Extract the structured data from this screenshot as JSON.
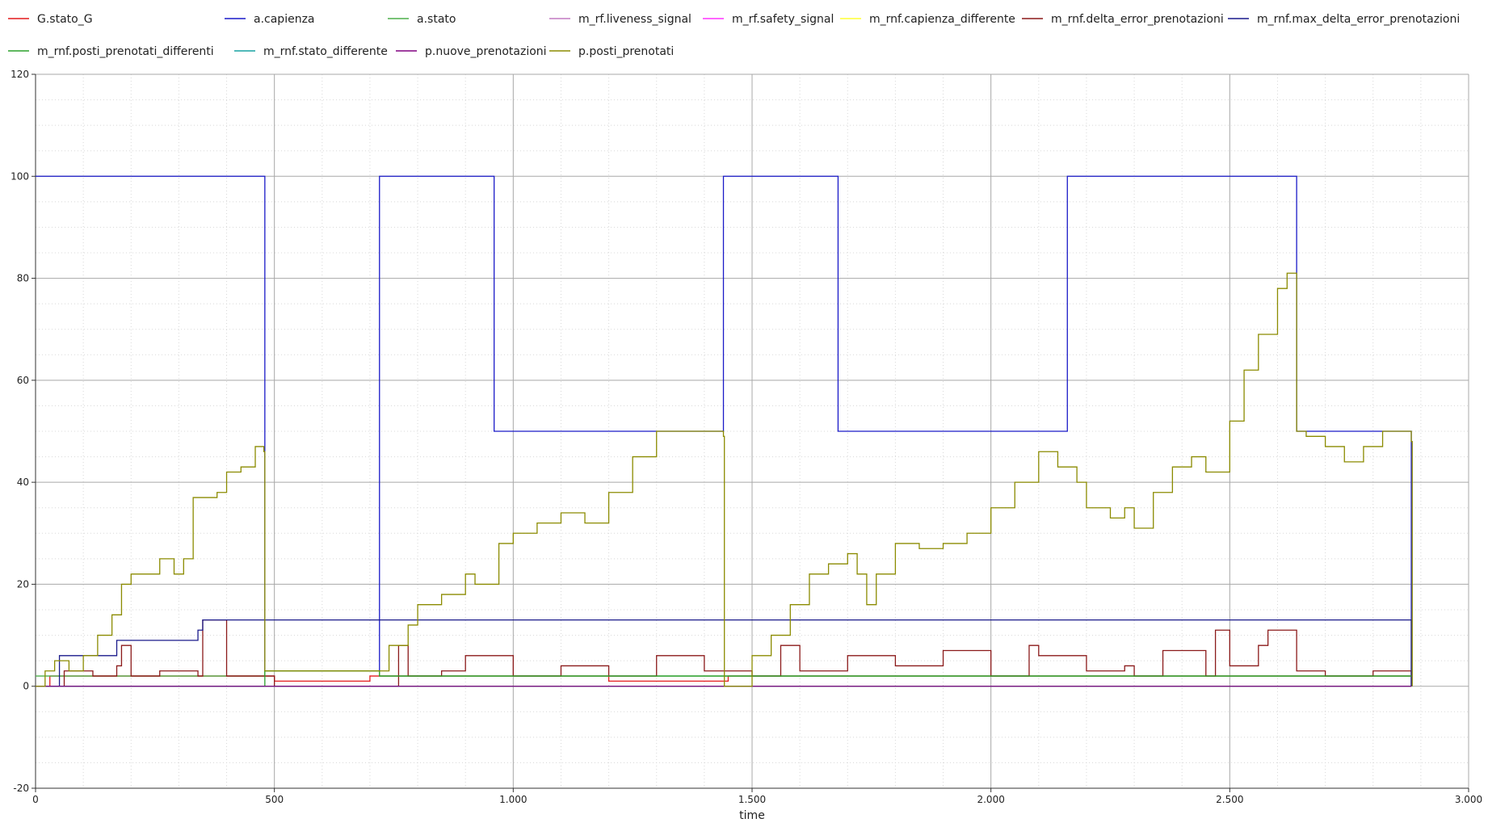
{
  "chart_data": {
    "type": "line",
    "title": "",
    "xlabel": "time",
    "ylabel": "",
    "xlim": [
      0,
      3000
    ],
    "ylim": [
      -20,
      120
    ],
    "x_ticks": [
      0,
      500,
      1000,
      1500,
      2000,
      2500,
      3000
    ],
    "x_tick_labels": [
      "0",
      "500",
      "1.000",
      "1.500",
      "2.000",
      "2.500",
      "3.000"
    ],
    "y_ticks": [
      -20,
      0,
      20,
      40,
      60,
      80,
      100,
      120
    ],
    "y_tick_labels": [
      "-20",
      "0",
      "20",
      "40",
      "60",
      "80",
      "100",
      "120"
    ],
    "grid": true,
    "legend_position": "top",
    "series": [
      {
        "name": "G.stato_G",
        "color": "#e41a1c",
        "x": [
          0,
          30,
          30,
          500,
          500,
          700,
          700,
          1200,
          1200,
          1450,
          1450,
          2160,
          2160,
          2880
        ],
        "y": [
          0,
          0,
          2,
          2,
          1,
          1,
          2,
          2,
          1,
          1,
          2,
          2,
          2,
          2
        ]
      },
      {
        "name": "a.capienza",
        "color": "#1a1ac8",
        "x": [
          0,
          480,
          480,
          720,
          720,
          960,
          960,
          1440,
          1440,
          1680,
          1680,
          2160,
          2160,
          2640,
          2640,
          2880,
          2880
        ],
        "y": [
          100,
          100,
          3,
          3,
          100,
          100,
          50,
          50,
          100,
          100,
          50,
          50,
          100,
          100,
          50,
          50,
          0
        ]
      },
      {
        "name": "a.stato",
        "color": "#4daf4a",
        "x": [
          0,
          480,
          480,
          720,
          720,
          2880
        ],
        "y": [
          2,
          2,
          3,
          3,
          2,
          2
        ]
      },
      {
        "name": "m_rf.liveness_signal",
        "color": "#c27ac2",
        "x": [
          0,
          2880
        ],
        "y": [
          0,
          0
        ]
      },
      {
        "name": "m_rf.safety_signal",
        "color": "#ff33ff",
        "x": [
          0,
          2880
        ],
        "y": [
          0,
          0
        ]
      },
      {
        "name": "m_rnf.capienza_differente",
        "color": "#ffff33",
        "x": [
          0,
          2880
        ],
        "y": [
          0,
          0
        ]
      },
      {
        "name": "m_rnf.delta_error_prenotazioni",
        "color": "#8b1a1a",
        "x": [
          0,
          60,
          120,
          170,
          180,
          200,
          260,
          340,
          350,
          400,
          500,
          700,
          760,
          780,
          850,
          900,
          1000,
          1100,
          1200,
          1300,
          1400,
          1500,
          1560,
          1600,
          1700,
          1800,
          1900,
          2000,
          2080,
          2100,
          2200,
          2280,
          2300,
          2360,
          2450,
          2470,
          2500,
          2560,
          2580,
          2640,
          2700,
          2800,
          2880
        ],
        "y": [
          0,
          3,
          2,
          4,
          8,
          2,
          3,
          2,
          13,
          2,
          0,
          0,
          8,
          2,
          3,
          6,
          2,
          4,
          2,
          6,
          3,
          2,
          8,
          3,
          6,
          4,
          7,
          2,
          8,
          6,
          3,
          4,
          2,
          7,
          2,
          11,
          4,
          8,
          11,
          3,
          2,
          3,
          0
        ]
      },
      {
        "name": "m_rnf.max_delta_error_prenotazioni",
        "color": "#1a1a8b",
        "x": [
          0,
          50,
          50,
          170,
          170,
          340,
          340,
          350,
          350,
          2880,
          2880
        ],
        "y": [
          0,
          0,
          6,
          6,
          9,
          9,
          11,
          11,
          13,
          13,
          0
        ]
      },
      {
        "name": "m_rnf.posti_prenotati_differenti",
        "color": "#2ca02c",
        "x": [
          0,
          480,
          480,
          720,
          720,
          2880
        ],
        "y": [
          0,
          0,
          3,
          3,
          2,
          2
        ]
      },
      {
        "name": "m_rnf.stato_differente",
        "color": "#17a2a2",
        "x": [
          0,
          2880
        ],
        "y": [
          0,
          0
        ]
      },
      {
        "name": "p.nuove_prenotazioni",
        "color": "#800080",
        "x": [
          0,
          2880
        ],
        "y": [
          0,
          0
        ]
      },
      {
        "name": "p.posti_prenotati",
        "color": "#8b8b00",
        "x": [
          0,
          20,
          40,
          70,
          100,
          130,
          160,
          180,
          200,
          230,
          260,
          290,
          310,
          330,
          350,
          380,
          400,
          430,
          460,
          478,
          480,
          720,
          740,
          780,
          800,
          850,
          900,
          920,
          970,
          1000,
          1050,
          1100,
          1150,
          1200,
          1250,
          1300,
          1350,
          1400,
          1440,
          1442,
          1500,
          1540,
          1580,
          1620,
          1660,
          1700,
          1720,
          1740,
          1760,
          1800,
          1850,
          1900,
          1950,
          2000,
          2050,
          2100,
          2140,
          2180,
          2200,
          2250,
          2280,
          2300,
          2340,
          2380,
          2420,
          2450,
          2500,
          2530,
          2560,
          2600,
          2620,
          2640,
          2660,
          2700,
          2740,
          2780,
          2820,
          2880,
          2882
        ],
        "y": [
          0,
          3,
          5,
          3,
          6,
          10,
          14,
          20,
          22,
          22,
          25,
          22,
          25,
          37,
          37,
          38,
          42,
          43,
          47,
          46,
          3,
          3,
          8,
          12,
          16,
          18,
          22,
          20,
          28,
          30,
          32,
          34,
          32,
          38,
          45,
          50,
          50,
          50,
          49,
          0,
          6,
          10,
          16,
          22,
          24,
          26,
          22,
          16,
          22,
          28,
          27,
          28,
          30,
          35,
          40,
          46,
          43,
          40,
          35,
          33,
          35,
          31,
          38,
          43,
          45,
          42,
          52,
          62,
          69,
          78,
          81,
          50,
          49,
          47,
          44,
          47,
          50,
          48,
          0
        ]
      }
    ]
  }
}
